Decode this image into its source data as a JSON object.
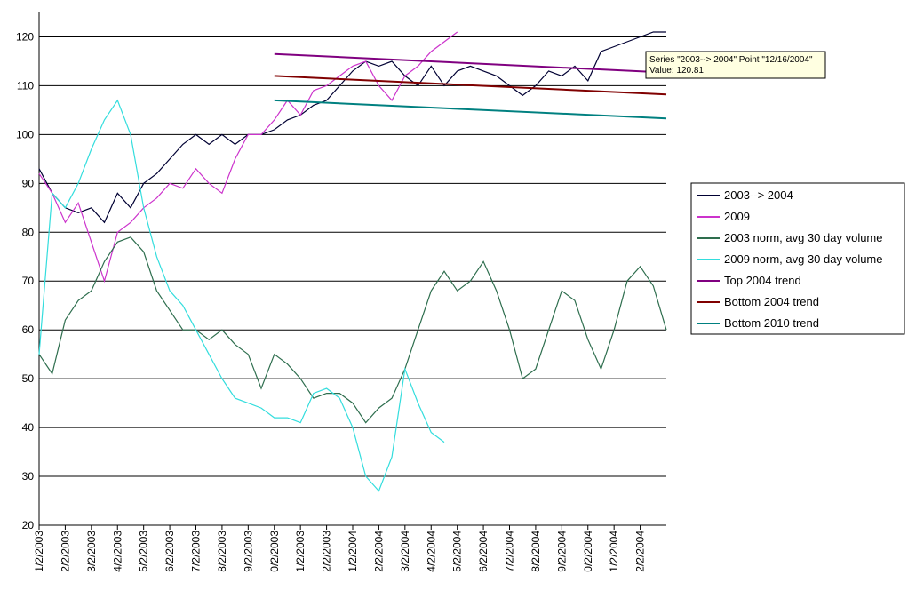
{
  "chart_data": {
    "type": "line",
    "categories": [
      "1/2/2003",
      null,
      "2/2/2003",
      null,
      "3/2/2003",
      null,
      "4/2/2003",
      null,
      "5/2/2003",
      null,
      "6/2/2003",
      null,
      "7/2/2003",
      null,
      "8/2/2003",
      null,
      "9/2/2003",
      null,
      "0/2/2003",
      null,
      "1/2/2003",
      null,
      "2/2/2003",
      null,
      "1/2/2004",
      null,
      "2/2/2004",
      null,
      "3/2/2004",
      null,
      "4/2/2004",
      null,
      "5/2/2004",
      null,
      "6/2/2004",
      null,
      "7/2/2004",
      null,
      "8/2/2004",
      null,
      "9/2/2004",
      null,
      "0/2/2004",
      null,
      "1/2/2004",
      null,
      "2/2/2004",
      null,
      null
    ],
    "series": [
      {
        "name": "2003--> 2004",
        "color": "#000033",
        "values": [
          93,
          88,
          85,
          84,
          85,
          82,
          88,
          85,
          90,
          92,
          95,
          98,
          100,
          98,
          100,
          98,
          100,
          100,
          101,
          103,
          104,
          106,
          107,
          110,
          113,
          115,
          114,
          115,
          112,
          110,
          114,
          110,
          113,
          114,
          113,
          112,
          110,
          108,
          110,
          113,
          112,
          114,
          111,
          117,
          118,
          119,
          120,
          121,
          121
        ]
      },
      {
        "name": "2009",
        "color": "#cc33cc",
        "values": [
          92,
          88,
          82,
          86,
          78,
          70,
          80,
          82,
          85,
          87,
          90,
          89,
          93,
          90,
          88,
          95,
          100,
          100,
          103,
          107,
          104,
          109,
          110,
          112,
          114,
          115,
          110,
          107,
          112,
          114,
          117,
          119,
          121,
          null,
          null,
          null,
          null,
          null,
          null,
          null,
          null,
          null,
          null,
          null,
          null,
          null,
          null,
          null,
          null
        ]
      },
      {
        "name": "2003 norm, avg 30 day volume",
        "color": "#2e6e4e",
        "values": [
          55,
          51,
          62,
          66,
          68,
          74,
          78,
          79,
          76,
          68,
          64,
          60,
          60,
          58,
          60,
          57,
          55,
          48,
          55,
          53,
          50,
          46,
          47,
          47,
          45,
          41,
          44,
          46,
          52,
          60,
          68,
          72,
          68,
          70,
          74,
          68,
          60,
          50,
          52,
          60,
          68,
          66,
          58,
          52,
          60,
          70,
          73,
          69,
          60
        ]
      },
      {
        "name": "2009 norm, avg 30 day volume",
        "color": "#33dddd",
        "values": [
          55,
          88,
          85,
          90,
          97,
          103,
          107,
          100,
          85,
          75,
          68,
          65,
          60,
          55,
          50,
          46,
          45,
          44,
          42,
          42,
          41,
          47,
          48,
          46,
          40,
          30,
          27,
          34,
          52,
          45,
          39,
          37,
          null,
          null,
          null,
          null,
          null,
          null,
          null,
          null,
          null,
          null,
          null,
          null,
          null,
          null,
          null,
          null,
          null
        ]
      },
      {
        "name": "Top 2004 trend",
        "color": "#800080",
        "values": [
          null,
          null,
          null,
          null,
          null,
          null,
          null,
          null,
          null,
          null,
          null,
          null,
          null,
          null,
          null,
          null,
          null,
          null,
          116.5,
          null,
          null,
          null,
          null,
          null,
          null,
          null,
          null,
          null,
          null,
          null,
          null,
          null,
          null,
          null,
          null,
          null,
          null,
          null,
          null,
          null,
          null,
          null,
          null,
          null,
          null,
          null,
          null,
          null,
          112.7
        ]
      },
      {
        "name": "Bottom 2004 trend",
        "color": "#800000",
        "values": [
          null,
          null,
          null,
          null,
          null,
          null,
          null,
          null,
          null,
          null,
          null,
          null,
          null,
          null,
          null,
          null,
          null,
          null,
          112,
          null,
          null,
          null,
          null,
          null,
          null,
          null,
          null,
          null,
          null,
          null,
          null,
          null,
          null,
          null,
          null,
          null,
          null,
          null,
          null,
          null,
          null,
          null,
          null,
          null,
          null,
          null,
          null,
          null,
          108.2
        ]
      },
      {
        "name": "Bottom 2010 trend",
        "color": "#008080",
        "values": [
          null,
          null,
          null,
          null,
          null,
          null,
          null,
          null,
          null,
          null,
          null,
          null,
          null,
          null,
          null,
          null,
          null,
          null,
          107,
          null,
          null,
          null,
          null,
          null,
          null,
          null,
          null,
          null,
          null,
          null,
          null,
          null,
          null,
          null,
          null,
          null,
          null,
          null,
          null,
          null,
          null,
          null,
          null,
          null,
          null,
          null,
          null,
          null,
          103.3
        ]
      }
    ],
    "ylim": [
      20,
      125
    ],
    "yticks": [
      20,
      30,
      40,
      50,
      60,
      70,
      80,
      90,
      100,
      110,
      120
    ],
    "grid": true,
    "legend": "right",
    "annotations": [
      "Series \"2003--> 2004\" Point \"12/16/2004\"",
      "Value: 120.81"
    ]
  }
}
